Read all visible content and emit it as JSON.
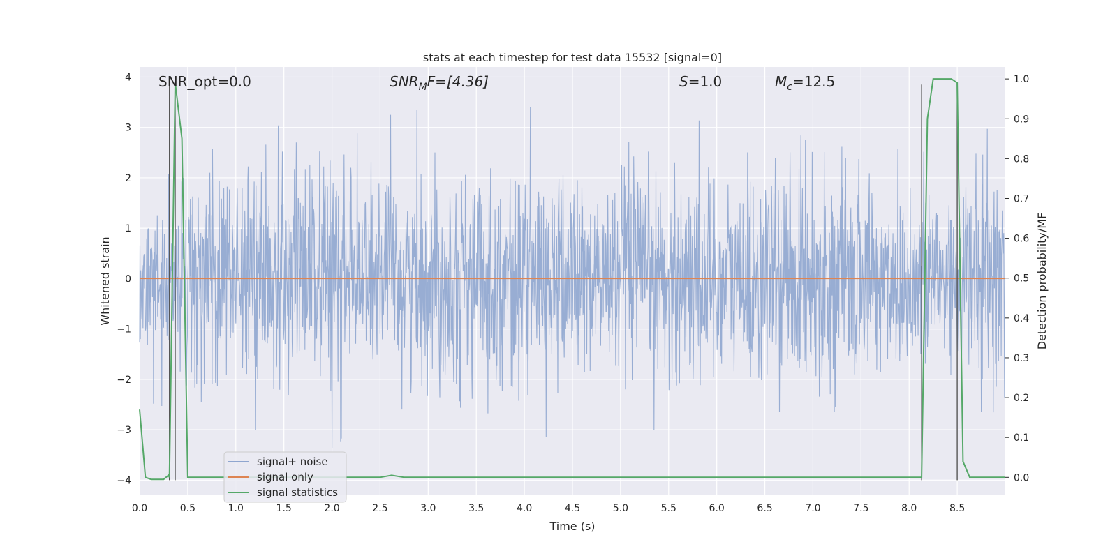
{
  "chart_data": {
    "type": "line",
    "title": "stats at each timestep for test data 15532 [signal=0]",
    "xlabel": "Time (s)",
    "ylabel": "Whitened strain",
    "y2label": "Detection probability/MF",
    "xlim": [
      0,
      9
    ],
    "ylim": [
      -4.3,
      4.2
    ],
    "y2lim": [
      -0.045,
      1.03
    ],
    "xticks": [
      "0.0",
      "0.5",
      "1.0",
      "1.5",
      "2.0",
      "2.5",
      "3.0",
      "3.5",
      "4.0",
      "4.5",
      "5.0",
      "5.5",
      "6.0",
      "6.5",
      "7.0",
      "7.5",
      "8.0",
      "8.5"
    ],
    "yticks": [
      "4",
      "3",
      "2",
      "1",
      "0",
      "−1",
      "−2",
      "−3",
      "−4"
    ],
    "y2ticks": [
      "1.0",
      "0.9",
      "0.8",
      "0.7",
      "0.6",
      "0.5",
      "0.4",
      "0.3",
      "0.2",
      "0.1",
      "0.0"
    ],
    "grid": true,
    "legend_position": "lower-left",
    "annotations": {
      "snr_opt": "SNR_opt=0.0",
      "snr_mf_main": "SNR",
      "snr_mf_sub": "M",
      "snr_mf_rest": "F=[4.36]",
      "s_var": "S",
      "s_value": "=1.0",
      "mc_main": "M",
      "mc_sub": "c",
      "mc_value": "=12.5"
    },
    "vertical_lines_x": [
      0.31,
      0.37,
      8.13,
      8.5
    ],
    "series": [
      {
        "name": "signal+ noise",
        "color": "#8fa6cf",
        "axis": "left",
        "description_kind": "noise",
        "sample_rate": 256,
        "typical_std": 1.0
      },
      {
        "name": "signal only",
        "color": "#dd8452",
        "axis": "left",
        "x": [
          0,
          9
        ],
        "y": [
          0,
          0
        ]
      },
      {
        "name": "signal statistics",
        "color": "#55a868",
        "axis": "right",
        "x": [
          0.0,
          0.06,
          0.12,
          0.25,
          0.3,
          0.31,
          0.37,
          0.44,
          0.5,
          2.5,
          2.62,
          2.75,
          7.8,
          8.13,
          8.19,
          8.25,
          8.44,
          8.5,
          8.56,
          8.63,
          9.0
        ],
        "y": [
          0.17,
          0.0,
          -0.005,
          -0.005,
          0.005,
          0.0,
          0.99,
          0.85,
          0.0,
          0.0,
          0.005,
          0.0,
          0.0,
          0.0,
          0.9,
          1.0,
          1.0,
          0.99,
          0.04,
          0.0,
          0.0
        ]
      }
    ]
  }
}
